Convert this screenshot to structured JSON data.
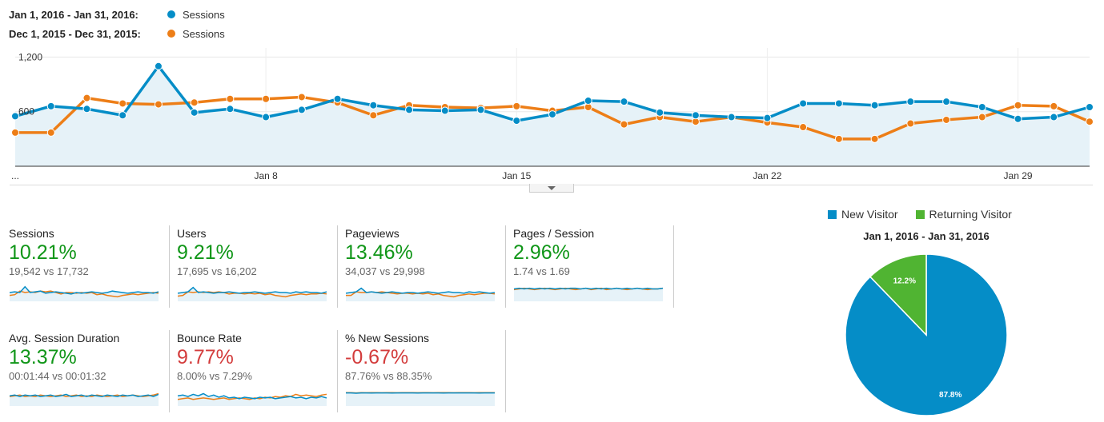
{
  "header": {
    "rows": [
      {
        "range": "Jan 1, 2016 - Jan 31, 2016:",
        "label": "Sessions",
        "color": "#058dc7"
      },
      {
        "range": "Dec 1, 2015 - Dec 31, 2015:",
        "label": "Sessions",
        "color": "#ed7e17"
      }
    ]
  },
  "chart_data": [
    {
      "type": "line",
      "x_tick_labels": [
        "...",
        "Jan 8",
        "Jan 15",
        "Jan 22",
        "Jan 29"
      ],
      "y_tick_labels": [
        "1,200",
        "600"
      ],
      "ylim": [
        0,
        1300
      ],
      "grid": true,
      "series": [
        {
          "name": "Jan 1, 2016 - Jan 31, 2016: Sessions",
          "color": "#058dc7",
          "values": [
            550,
            660,
            630,
            560,
            1100,
            590,
            630,
            540,
            620,
            740,
            670,
            620,
            610,
            620,
            500,
            570,
            720,
            710,
            590,
            560,
            540,
            530,
            690,
            690,
            670,
            710,
            710,
            650,
            520,
            540,
            650
          ]
        },
        {
          "name": "Dec 1, 2015 - Dec 31, 2015: Sessions",
          "color": "#ed7e17",
          "values": [
            370,
            370,
            750,
            690,
            680,
            700,
            740,
            740,
            760,
            700,
            560,
            670,
            650,
            640,
            660,
            610,
            650,
            460,
            540,
            490,
            540,
            480,
            430,
            300,
            300,
            470,
            510,
            540,
            670,
            660,
            490
          ]
        }
      ]
    },
    {
      "type": "pie",
      "title": "Jan 1, 2016 - Jan 31, 2016",
      "slices": [
        {
          "label": "New Visitor",
          "value": 87.8,
          "display": "87.8%",
          "color": "#058dc7"
        },
        {
          "label": "Returning Visitor",
          "value": 12.2,
          "display": "12.2%",
          "color": "#50b432"
        }
      ]
    }
  ],
  "metrics": [
    {
      "name": "Sessions",
      "value": "10.21%",
      "trend": "up",
      "compare": "19,542 vs 17,732",
      "spark": {
        "a": [
          0.5,
          0.55,
          0.5,
          0.9,
          0.5,
          0.55,
          0.6,
          0.45,
          0.5,
          0.55,
          0.5,
          0.45,
          0.4,
          0.5,
          0.45,
          0.5,
          0.55,
          0.5,
          0.45,
          0.5,
          0.6,
          0.55,
          0.5,
          0.45,
          0.5,
          0.55,
          0.5,
          0.5,
          0.45,
          0.55
        ],
        "b": [
          0.3,
          0.35,
          0.6,
          0.5,
          0.55,
          0.5,
          0.6,
          0.55,
          0.6,
          0.5,
          0.4,
          0.5,
          0.5,
          0.45,
          0.5,
          0.45,
          0.5,
          0.35,
          0.4,
          0.3,
          0.25,
          0.2,
          0.3,
          0.35,
          0.4,
          0.35,
          0.4,
          0.45,
          0.5,
          0.45
        ]
      }
    },
    {
      "name": "Users",
      "value": "9.21%",
      "trend": "up",
      "compare": "17,695 vs 16,202",
      "spark": {
        "a": [
          0.45,
          0.5,
          0.55,
          0.85,
          0.5,
          0.55,
          0.5,
          0.45,
          0.5,
          0.5,
          0.55,
          0.5,
          0.45,
          0.5,
          0.5,
          0.55,
          0.5,
          0.45,
          0.5,
          0.55,
          0.5,
          0.5,
          0.45,
          0.55,
          0.5,
          0.55,
          0.5,
          0.5,
          0.45,
          0.55
        ],
        "b": [
          0.25,
          0.3,
          0.55,
          0.5,
          0.55,
          0.5,
          0.55,
          0.5,
          0.55,
          0.5,
          0.4,
          0.45,
          0.45,
          0.4,
          0.45,
          0.4,
          0.45,
          0.35,
          0.4,
          0.3,
          0.25,
          0.2,
          0.3,
          0.35,
          0.4,
          0.35,
          0.4,
          0.4,
          0.45,
          0.4
        ]
      }
    },
    {
      "name": "Pageviews",
      "value": "13.46%",
      "trend": "up",
      "compare": "34,037 vs 29,998",
      "spark": {
        "a": [
          0.45,
          0.5,
          0.55,
          0.8,
          0.5,
          0.55,
          0.5,
          0.45,
          0.5,
          0.55,
          0.5,
          0.45,
          0.5,
          0.5,
          0.45,
          0.5,
          0.55,
          0.5,
          0.45,
          0.5,
          0.55,
          0.5,
          0.5,
          0.45,
          0.55,
          0.5,
          0.55,
          0.5,
          0.45,
          0.5
        ],
        "b": [
          0.3,
          0.3,
          0.55,
          0.5,
          0.5,
          0.55,
          0.5,
          0.55,
          0.5,
          0.45,
          0.4,
          0.45,
          0.45,
          0.4,
          0.45,
          0.4,
          0.45,
          0.35,
          0.4,
          0.3,
          0.25,
          0.2,
          0.3,
          0.35,
          0.4,
          0.35,
          0.4,
          0.45,
          0.45,
          0.4
        ]
      }
    },
    {
      "name": "Pages / Session",
      "value": "2.96%",
      "trend": "up",
      "compare": "1.74 vs 1.69",
      "spark": {
        "a": [
          0.75,
          0.8,
          0.75,
          0.8,
          0.75,
          0.8,
          0.75,
          0.8,
          0.75,
          0.8,
          0.75,
          0.8,
          0.8,
          0.75,
          0.8,
          0.75,
          0.8,
          0.75,
          0.8,
          0.75,
          0.8,
          0.75,
          0.8,
          0.75,
          0.8,
          0.75,
          0.8,
          0.75,
          0.75,
          0.8
        ],
        "b": [
          0.7,
          0.75,
          0.8,
          0.75,
          0.7,
          0.75,
          0.8,
          0.75,
          0.7,
          0.75,
          0.8,
          0.75,
          0.7,
          0.75,
          0.8,
          0.7,
          0.75,
          0.8,
          0.7,
          0.75,
          0.8,
          0.75,
          0.7,
          0.75,
          0.8,
          0.75,
          0.7,
          0.75,
          0.75,
          0.8
        ]
      }
    },
    {
      "name": "Avg. Session Duration",
      "value": "13.37%",
      "trend": "up",
      "compare": "00:01:44 vs 00:01:32",
      "spark": {
        "a": [
          0.6,
          0.65,
          0.55,
          0.65,
          0.6,
          0.65,
          0.55,
          0.6,
          0.65,
          0.55,
          0.6,
          0.7,
          0.55,
          0.6,
          0.65,
          0.55,
          0.65,
          0.6,
          0.55,
          0.65,
          0.6,
          0.55,
          0.65,
          0.6,
          0.65,
          0.55,
          0.6,
          0.65,
          0.55,
          0.7
        ],
        "b": [
          0.55,
          0.6,
          0.65,
          0.55,
          0.6,
          0.55,
          0.65,
          0.6,
          0.55,
          0.6,
          0.65,
          0.55,
          0.6,
          0.65,
          0.55,
          0.6,
          0.55,
          0.65,
          0.6,
          0.55,
          0.6,
          0.65,
          0.55,
          0.6,
          0.65,
          0.6,
          0.55,
          0.6,
          0.65,
          0.75
        ]
      }
    },
    {
      "name": "Bounce Rate",
      "value": "9.77%",
      "trend": "down",
      "compare": "8.00% vs 7.29%",
      "spark": {
        "a": [
          0.6,
          0.65,
          0.55,
          0.7,
          0.6,
          0.75,
          0.55,
          0.65,
          0.5,
          0.6,
          0.45,
          0.5,
          0.4,
          0.5,
          0.45,
          0.4,
          0.5,
          0.45,
          0.5,
          0.4,
          0.45,
          0.5,
          0.55,
          0.45,
          0.5,
          0.4,
          0.5,
          0.45,
          0.55,
          0.45
        ],
        "b": [
          0.35,
          0.4,
          0.45,
          0.35,
          0.4,
          0.45,
          0.4,
          0.35,
          0.4,
          0.45,
          0.35,
          0.4,
          0.45,
          0.4,
          0.35,
          0.45,
          0.4,
          0.5,
          0.45,
          0.55,
          0.5,
          0.6,
          0.55,
          0.7,
          0.6,
          0.65,
          0.6,
          0.55,
          0.65,
          0.7
        ]
      }
    },
    {
      "name": "% New Sessions",
      "value": "-0.67%",
      "trend": "down",
      "compare": "87.76% vs 88.35%",
      "spark": {
        "a": [
          0.8,
          0.8,
          0.78,
          0.8,
          0.8,
          0.79,
          0.8,
          0.8,
          0.8,
          0.79,
          0.8,
          0.8,
          0.8,
          0.8,
          0.79,
          0.8,
          0.8,
          0.8,
          0.8,
          0.79,
          0.8,
          0.8,
          0.8,
          0.8,
          0.8,
          0.8,
          0.79,
          0.8,
          0.8,
          0.8
        ],
        "b": [
          0.82,
          0.82,
          0.8,
          0.82,
          0.81,
          0.82,
          0.82,
          0.81,
          0.82,
          0.82,
          0.81,
          0.82,
          0.82,
          0.82,
          0.81,
          0.82,
          0.82,
          0.81,
          0.82,
          0.82,
          0.82,
          0.81,
          0.82,
          0.82,
          0.82,
          0.81,
          0.82,
          0.82,
          0.82,
          0.82
        ]
      }
    }
  ]
}
